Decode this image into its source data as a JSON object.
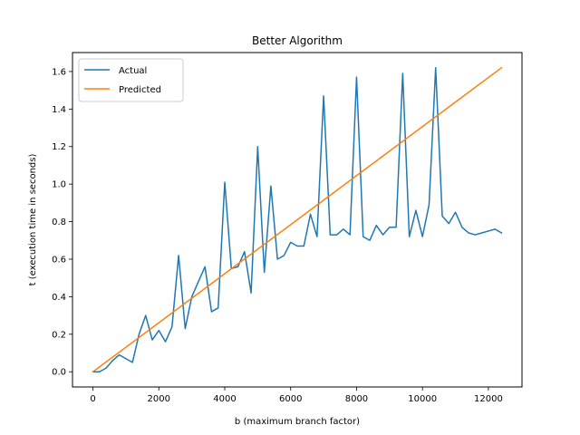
{
  "chart_data": {
    "type": "line",
    "title": "Better Algorithm",
    "xlabel": "b (maximum branch factor)",
    "ylabel": "t (execution time in seconds)",
    "xlim": [
      -620,
      13020
    ],
    "ylim": [
      -0.081,
      1.701
    ],
    "xticks": [
      0,
      2000,
      4000,
      6000,
      8000,
      10000,
      12000
    ],
    "xtick_labels": [
      "0",
      "2000",
      "4000",
      "6000",
      "8000",
      "10000",
      "12000"
    ],
    "yticks": [
      0.0,
      0.2,
      0.4,
      0.6,
      0.8,
      1.0,
      1.2,
      1.4,
      1.6
    ],
    "ytick_labels": [
      "0.0",
      "0.2",
      "0.4",
      "0.6",
      "0.8",
      "1.0",
      "1.2",
      "1.4",
      "1.6"
    ],
    "grid": false,
    "legend_position": "top-left",
    "series": [
      {
        "name": "Actual",
        "color": "#1f77b4",
        "x": [
          0,
          200,
          400,
          600,
          800,
          1000,
          1200,
          1400,
          1600,
          1800,
          2000,
          2200,
          2400,
          2600,
          2800,
          3000,
          3200,
          3400,
          3600,
          3800,
          4000,
          4200,
          4400,
          4600,
          4800,
          5000,
          5200,
          5400,
          5600,
          5800,
          6000,
          6200,
          6400,
          6600,
          6800,
          7000,
          7200,
          7400,
          7600,
          7800,
          8000,
          8200,
          8400,
          8600,
          8800,
          9000,
          9200,
          9400,
          9600,
          9800,
          10000,
          10200,
          10400,
          10600,
          10800,
          11000,
          11200,
          11400,
          11600,
          11800,
          12000,
          12200,
          12400
        ],
        "values": [
          0.0,
          0.0,
          0.02,
          0.06,
          0.09,
          0.07,
          0.05,
          0.2,
          0.3,
          0.17,
          0.22,
          0.16,
          0.24,
          0.62,
          0.23,
          0.4,
          0.48,
          0.56,
          0.32,
          0.34,
          1.01,
          0.55,
          0.56,
          0.64,
          0.42,
          1.2,
          0.53,
          0.99,
          0.6,
          0.62,
          0.69,
          0.67,
          0.67,
          0.84,
          0.72,
          1.47,
          0.73,
          0.73,
          0.76,
          0.73,
          1.57,
          0.72,
          0.7,
          0.78,
          0.73,
          0.77,
          0.77,
          1.59,
          0.72,
          0.86,
          0.72,
          0.89,
          1.62,
          0.83,
          0.79,
          0.85,
          0.77,
          0.74,
          0.73,
          0.74,
          0.75,
          0.76,
          0.74
        ]
      },
      {
        "name": "Predicted",
        "color": "#ff7f0e",
        "x": [
          0,
          12400
        ],
        "values": [
          0.0,
          1.62
        ]
      }
    ]
  }
}
